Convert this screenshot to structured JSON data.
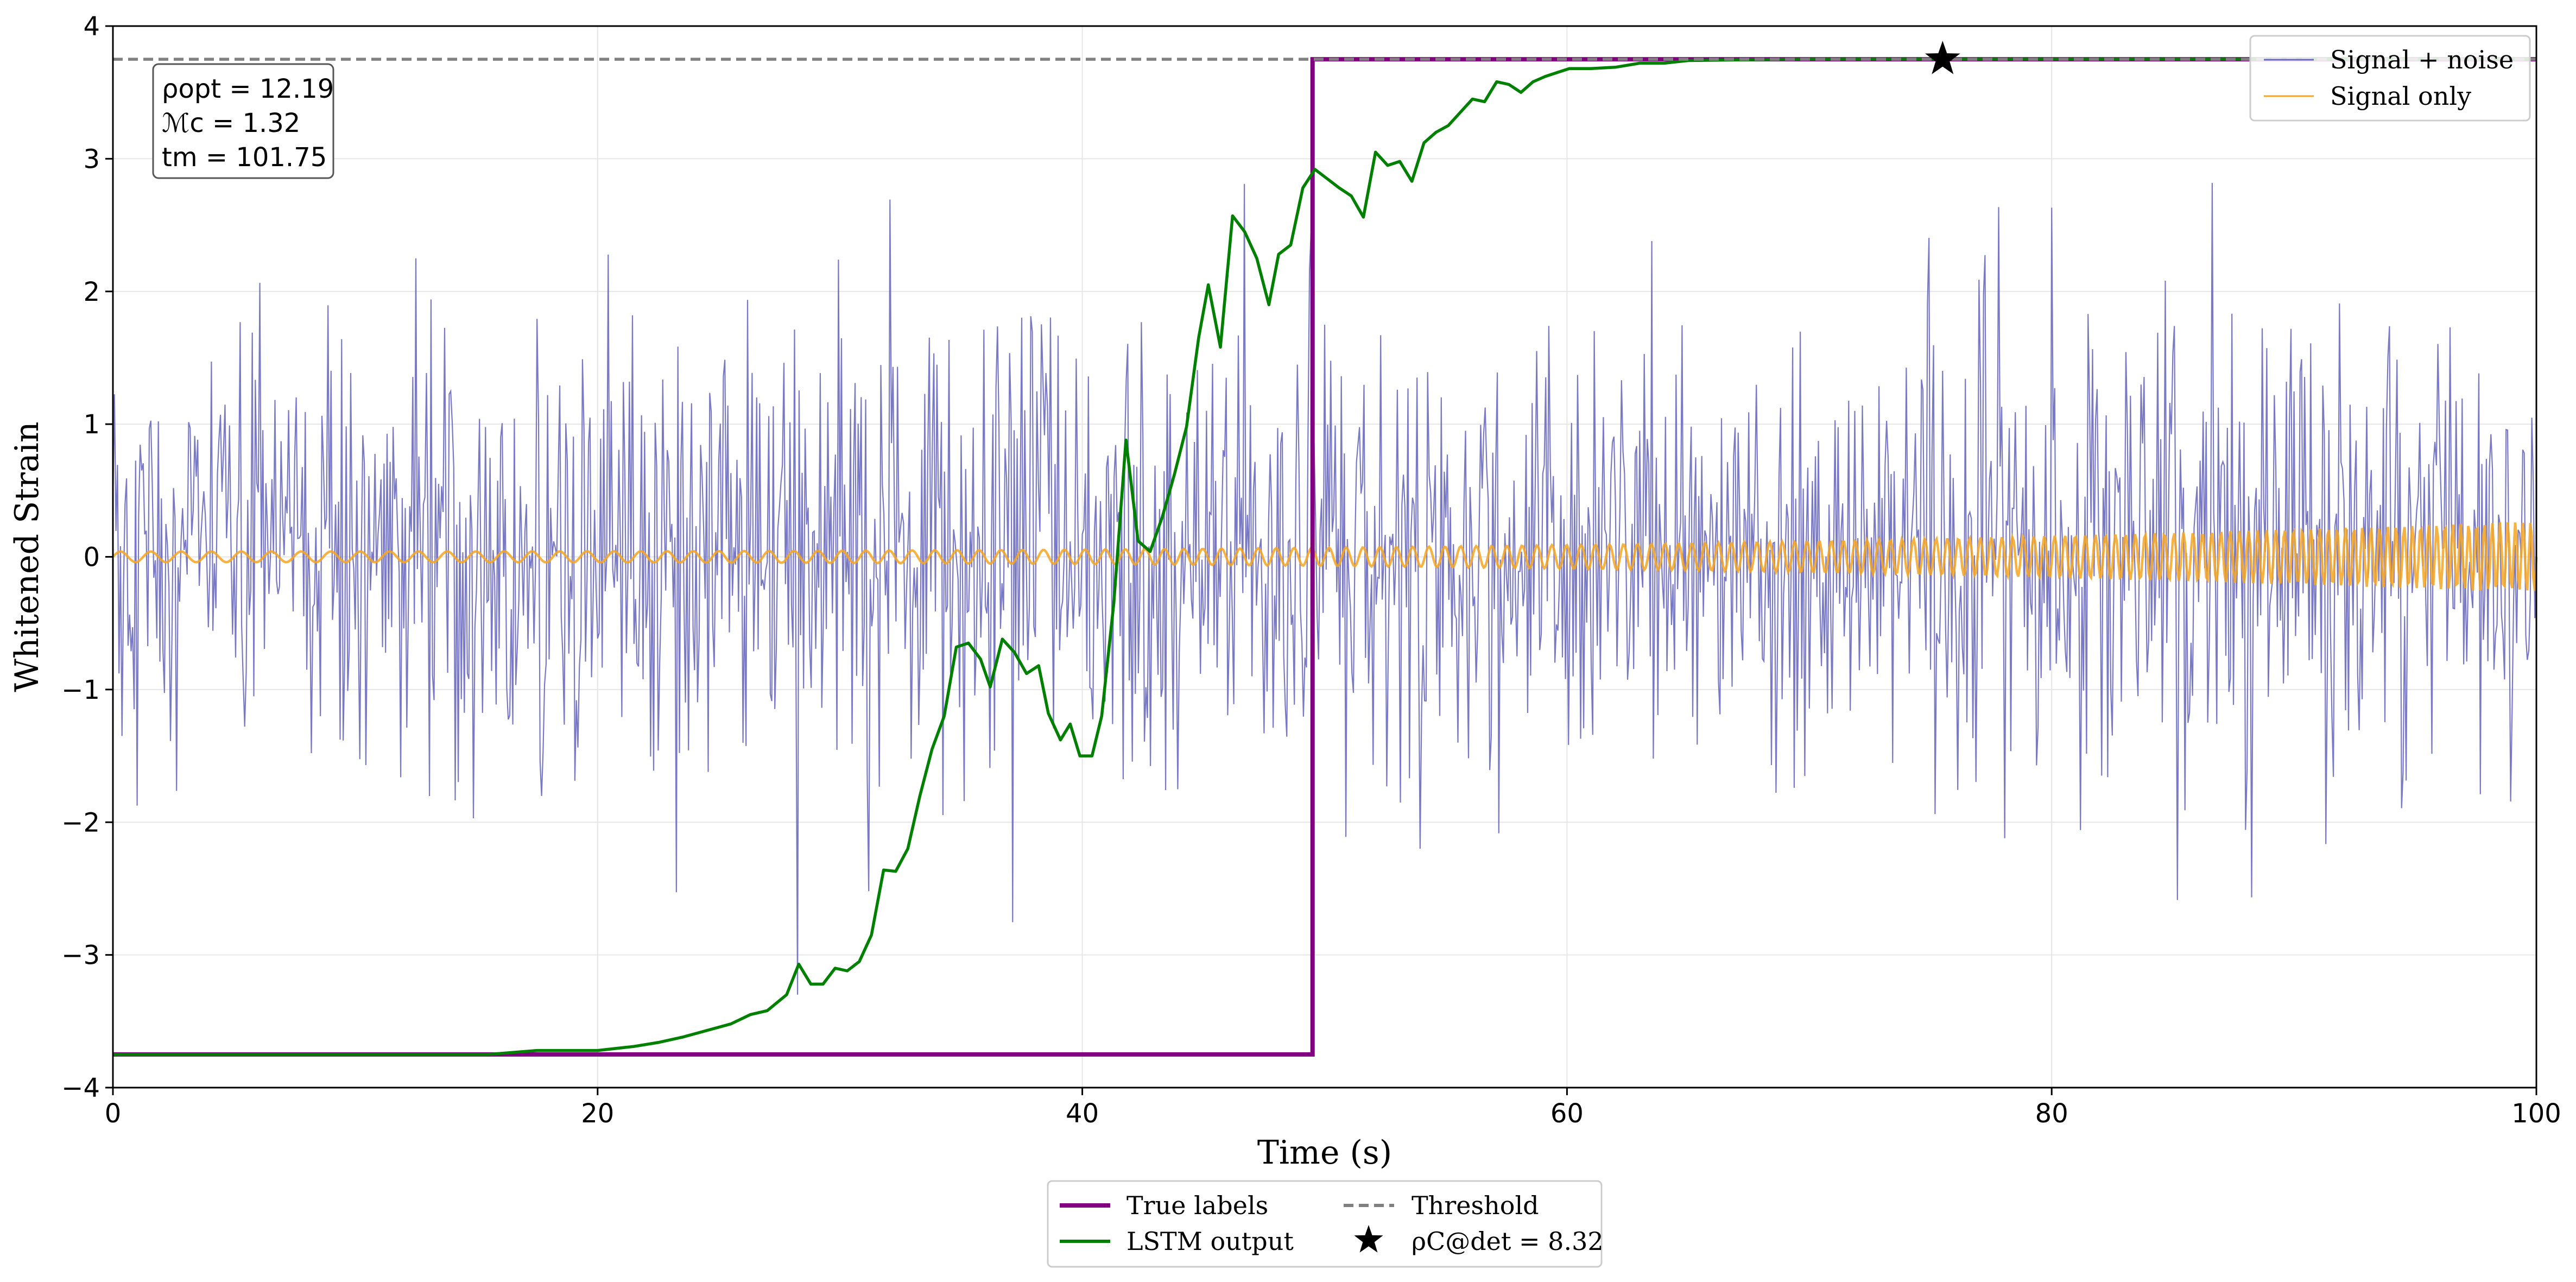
{
  "chart_data": {
    "type": "line",
    "title": "",
    "xlabel": "Time (s)",
    "ylabel": "Whitened Strain",
    "xlim": [
      0,
      100
    ],
    "ylim": [
      -4,
      4
    ],
    "x_ticks": [
      "0",
      "20",
      "40",
      "60",
      "80",
      "100"
    ],
    "y_ticks": [
      "−4",
      "−3",
      "−2",
      "−1",
      "0",
      "1",
      "2",
      "3",
      "4"
    ],
    "grid": true,
    "threshold": 3.75,
    "annotation": {
      "lines": [
        "ρopt = 12.19",
        "ℳc = 1.32",
        "tm = 101.75"
      ]
    },
    "detection_marker": {
      "x": 75.5,
      "y": 3.75,
      "label": "ρC@det = 8.32"
    },
    "series": [
      {
        "name": "Signal + noise",
        "color": "#6a6ac0",
        "kind": "noise",
        "sample_rate_hz": 16,
        "std": 0.85,
        "spread_percentile": "±3 approx"
      },
      {
        "name": "Signal only",
        "color": "#f5a623",
        "kind": "chirp",
        "amplitude_start": 0.04,
        "amplitude_end": 0.27,
        "frequency_start_hz": 0.8,
        "frequency_end_hz": 1.6
      },
      {
        "name": "True labels",
        "color": "#800080",
        "kind": "step",
        "points": [
          [
            0,
            -3.75
          ],
          [
            49.5,
            -3.75
          ],
          [
            49.5,
            3.75
          ],
          [
            100,
            3.75
          ]
        ]
      },
      {
        "name": "LSTM output",
        "color": "#008000",
        "kind": "line",
        "points": [
          [
            0,
            -3.75
          ],
          [
            15.5,
            -3.75
          ],
          [
            17.5,
            -3.72
          ],
          [
            20,
            -3.72
          ],
          [
            21.5,
            -3.69
          ],
          [
            22.5,
            -3.66
          ],
          [
            23.5,
            -3.62
          ],
          [
            24.5,
            -3.57
          ],
          [
            25.5,
            -3.52
          ],
          [
            26.3,
            -3.45
          ],
          [
            27,
            -3.42
          ],
          [
            27.8,
            -3.3
          ],
          [
            28.3,
            -3.07
          ],
          [
            28.8,
            -3.22
          ],
          [
            29.3,
            -3.22
          ],
          [
            29.8,
            -3.1
          ],
          [
            30.3,
            -3.12
          ],
          [
            30.8,
            -3.05
          ],
          [
            31.3,
            -2.85
          ],
          [
            31.8,
            -2.36
          ],
          [
            32.3,
            -2.37
          ],
          [
            32.8,
            -2.2
          ],
          [
            33.3,
            -1.8
          ],
          [
            33.8,
            -1.45
          ],
          [
            34.3,
            -1.2
          ],
          [
            34.8,
            -0.68
          ],
          [
            35.3,
            -0.65
          ],
          [
            35.8,
            -0.77
          ],
          [
            36.2,
            -0.98
          ],
          [
            36.7,
            -0.62
          ],
          [
            37.2,
            -0.72
          ],
          [
            37.7,
            -0.88
          ],
          [
            38.2,
            -0.82
          ],
          [
            38.6,
            -1.18
          ],
          [
            39.1,
            -1.38
          ],
          [
            39.5,
            -1.26
          ],
          [
            39.9,
            -1.5
          ],
          [
            40.4,
            -1.5
          ],
          [
            40.8,
            -1.2
          ],
          [
            41.3,
            -0.35
          ],
          [
            41.8,
            0.88
          ],
          [
            42.3,
            0.12
          ],
          [
            42.8,
            0.04
          ],
          [
            43.3,
            0.3
          ],
          [
            43.8,
            0.62
          ],
          [
            44.3,
            0.98
          ],
          [
            44.8,
            1.65
          ],
          [
            45.2,
            2.05
          ],
          [
            45.7,
            1.58
          ],
          [
            46.2,
            2.57
          ],
          [
            46.7,
            2.45
          ],
          [
            47.2,
            2.25
          ],
          [
            47.7,
            1.9
          ],
          [
            48.1,
            2.28
          ],
          [
            48.6,
            2.35
          ],
          [
            49.1,
            2.78
          ],
          [
            49.6,
            2.92
          ],
          [
            50.1,
            2.85
          ],
          [
            50.6,
            2.78
          ],
          [
            51.1,
            2.72
          ],
          [
            51.6,
            2.56
          ],
          [
            52.1,
            3.05
          ],
          [
            52.6,
            2.95
          ],
          [
            53.1,
            2.98
          ],
          [
            53.6,
            2.83
          ],
          [
            54.1,
            3.12
          ],
          [
            54.6,
            3.2
          ],
          [
            55.1,
            3.25
          ],
          [
            55.6,
            3.35
          ],
          [
            56.1,
            3.45
          ],
          [
            56.6,
            3.43
          ],
          [
            57.1,
            3.58
          ],
          [
            57.6,
            3.56
          ],
          [
            58.1,
            3.5
          ],
          [
            58.6,
            3.58
          ],
          [
            59.1,
            3.62
          ],
          [
            59.6,
            3.65
          ],
          [
            60.1,
            3.68
          ],
          [
            61,
            3.68
          ],
          [
            62,
            3.69
          ],
          [
            63,
            3.72
          ],
          [
            64,
            3.72
          ],
          [
            65,
            3.74
          ],
          [
            67,
            3.745
          ],
          [
            70,
            3.75
          ],
          [
            100,
            3.75
          ]
        ]
      }
    ],
    "legend_top_right": [
      "Signal + noise",
      "Signal only"
    ],
    "legend_bottom": [
      "True labels",
      "Threshold",
      "LSTM output",
      "ρC@det = 8.32"
    ],
    "colors": {
      "noise": "#6a6ac0",
      "signal": "#f5a623",
      "true_labels": "#800080",
      "lstm": "#008000",
      "threshold": "#808080",
      "marker": "#000000"
    }
  }
}
